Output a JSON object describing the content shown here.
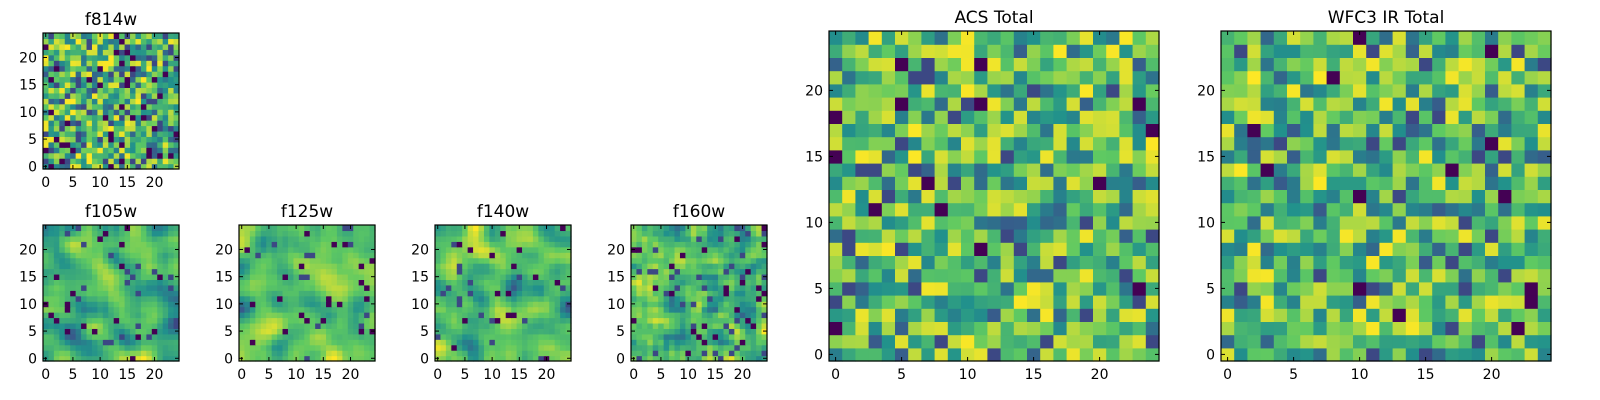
{
  "figure": {
    "colormap": "viridis",
    "colors": [
      "#440154",
      "#3b528b",
      "#21918c",
      "#5ec962",
      "#fde725"
    ]
  },
  "chart_data": [
    {
      "id": "f814w",
      "type": "heatmap",
      "title": "f814w",
      "grid_size": [
        25,
        25
      ],
      "xlim": [
        0,
        24
      ],
      "ylim": [
        0,
        24
      ],
      "xticks": [
        "0",
        "5",
        "10",
        "15",
        "20"
      ],
      "yticks": [
        "0",
        "5",
        "10",
        "15",
        "20"
      ],
      "value_range": [
        0,
        1
      ],
      "seed": 814,
      "dark_fraction": 0.06,
      "smoothing": 0
    },
    {
      "id": "f105w",
      "type": "heatmap",
      "title": "f105w",
      "grid_size": [
        25,
        25
      ],
      "xlim": [
        0,
        24
      ],
      "ylim": [
        0,
        24
      ],
      "xticks": [
        "0",
        "5",
        "10",
        "15",
        "20"
      ],
      "yticks": [
        "0",
        "5",
        "10",
        "15",
        "20"
      ],
      "value_range": [
        0,
        1
      ],
      "seed": 105,
      "dark_fraction": 0.03,
      "smoothing": 2
    },
    {
      "id": "f125w",
      "type": "heatmap",
      "title": "f125w",
      "grid_size": [
        25,
        25
      ],
      "xlim": [
        0,
        24
      ],
      "ylim": [
        0,
        24
      ],
      "xticks": [
        "0",
        "5",
        "10",
        "15",
        "20"
      ],
      "yticks": [
        "0",
        "5",
        "10",
        "15",
        "20"
      ],
      "value_range": [
        0,
        1
      ],
      "seed": 125,
      "dark_fraction": 0.03,
      "smoothing": 2
    },
    {
      "id": "f140w",
      "type": "heatmap",
      "title": "f140w",
      "grid_size": [
        25,
        25
      ],
      "xlim": [
        0,
        24
      ],
      "ylim": [
        0,
        24
      ],
      "xticks": [
        "0",
        "5",
        "10",
        "15",
        "20"
      ],
      "yticks": [
        "0",
        "5",
        "10",
        "15",
        "20"
      ],
      "value_range": [
        0,
        1
      ],
      "seed": 140,
      "dark_fraction": 0.03,
      "smoothing": 2
    },
    {
      "id": "f160w",
      "type": "heatmap",
      "title": "f160w",
      "grid_size": [
        25,
        25
      ],
      "xlim": [
        0,
        24
      ],
      "ylim": [
        0,
        24
      ],
      "xticks": [
        "0",
        "5",
        "10",
        "15",
        "20"
      ],
      "yticks": [
        "0",
        "5",
        "10",
        "15",
        "20"
      ],
      "value_range": [
        0,
        1
      ],
      "seed": 160,
      "dark_fraction": 0.04,
      "smoothing": 1
    },
    {
      "id": "acs-total",
      "type": "heatmap",
      "title": "ACS Total",
      "grid_size": [
        25,
        25
      ],
      "xlim": [
        0,
        24
      ],
      "ylim": [
        0,
        24
      ],
      "xticks": [
        "0",
        "5",
        "10",
        "15",
        "20"
      ],
      "yticks": [
        "0",
        "5",
        "10",
        "15",
        "20"
      ],
      "value_range": [
        0,
        1
      ],
      "seed": 700,
      "dark_fraction": 0.035,
      "smoothing": 0
    },
    {
      "id": "wfc3-ir-total",
      "type": "heatmap",
      "title": "WFC3 IR Total",
      "grid_size": [
        25,
        25
      ],
      "xlim": [
        0,
        24
      ],
      "ylim": [
        0,
        24
      ],
      "xticks": [
        "0",
        "5",
        "10",
        "15",
        "20"
      ],
      "yticks": [
        "0",
        "5",
        "10",
        "15",
        "20"
      ],
      "value_range": [
        0,
        1
      ],
      "seed": 900,
      "dark_fraction": 0.025,
      "smoothing": 0
    }
  ]
}
